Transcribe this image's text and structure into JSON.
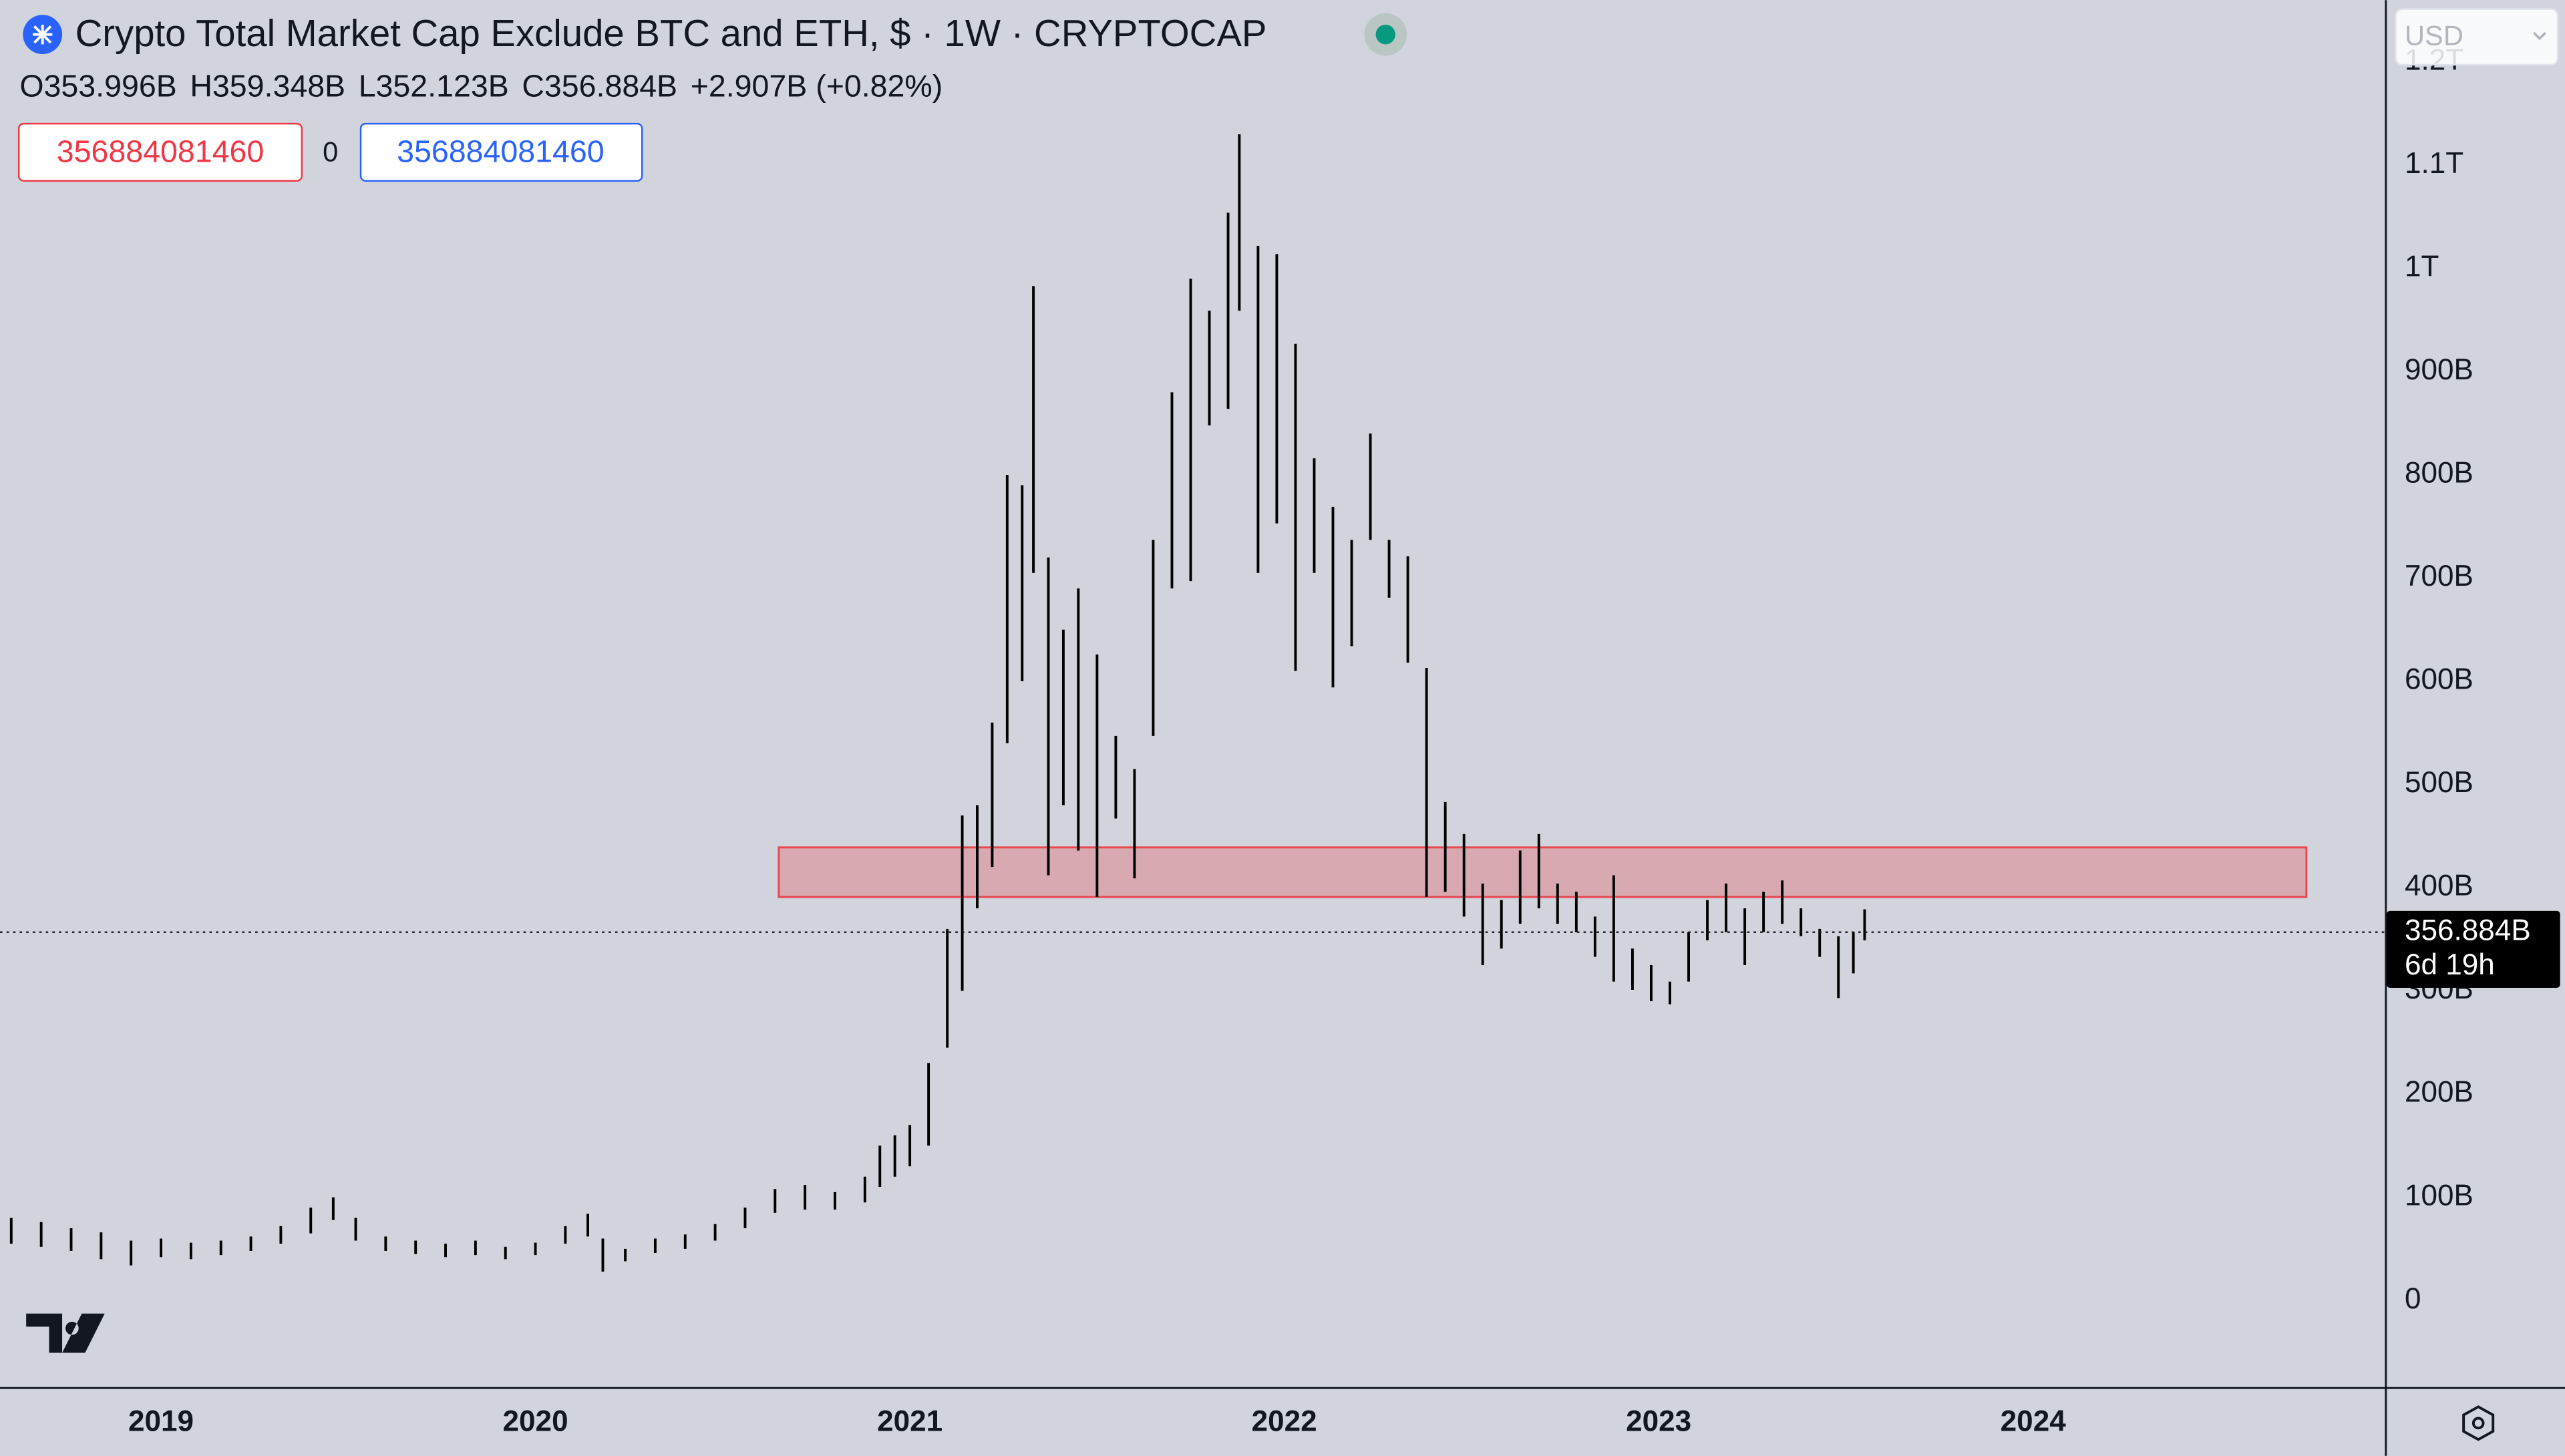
{
  "chart_data": {
    "type": "ohlc",
    "title": "Crypto Total Market Cap Exclude BTC and ETH, $ · 1W · CRYPTOCAP",
    "ohlc": [
      "O353.996B",
      "H359.348B",
      "L352.123B",
      "C356.884B",
      "+2.907B (+0.82%)"
    ],
    "inputs": [
      "356884081460",
      "0",
      "356884081460"
    ],
    "currency": "USD",
    "countdown": "6d 19h",
    "color": "#000000",
    "last_price": {
      "value": 356.884,
      "label": "356.884B"
    },
    "zone": {
      "x": [
        2020.65,
        2024.73
      ],
      "y": [
        391,
        439
      ],
      "color": "#e8474f"
    },
    "x": [
      2018.6,
      2018.68,
      2018.76,
      2018.84,
      2018.92,
      2019.0,
      2019.08,
      2019.16,
      2019.24,
      2019.32,
      2019.4,
      2019.46,
      2019.52,
      2019.6,
      2019.68,
      2019.76,
      2019.84,
      2019.92,
      2020.0,
      2020.08,
      2020.14,
      2020.18,
      2020.24,
      2020.32,
      2020.4,
      2020.48,
      2020.56,
      2020.64,
      2020.72,
      2020.8,
      2020.88,
      2020.92,
      2020.96,
      2021.0,
      2021.05,
      2021.1,
      2021.14,
      2021.18,
      2021.22,
      2021.26,
      2021.3,
      2021.33,
      2021.37,
      2021.41,
      2021.45,
      2021.5,
      2021.55,
      2021.6,
      2021.65,
      2021.7,
      2021.75,
      2021.8,
      2021.85,
      2021.88,
      2021.93,
      2021.98,
      2022.03,
      2022.08,
      2022.13,
      2022.18,
      2022.23,
      2022.28,
      2022.33,
      2022.38,
      2022.43,
      2022.48,
      2022.53,
      2022.58,
      2022.63,
      2022.68,
      2022.73,
      2022.78,
      2022.83,
      2022.88,
      2022.93,
      2022.98,
      2023.03,
      2023.08,
      2023.13,
      2023.18,
      2023.23,
      2023.28,
      2023.33,
      2023.38,
      2023.43,
      2023.48,
      2023.52,
      2023.55
    ],
    "high": [
      80,
      76,
      70,
      66,
      58,
      60,
      56,
      58,
      62,
      72,
      90,
      100,
      80,
      62,
      58,
      55,
      58,
      52,
      56,
      72,
      84,
      60,
      50,
      60,
      64,
      74,
      90,
      108,
      112,
      105,
      120,
      150,
      160,
      170,
      230,
      360,
      470,
      480,
      560,
      800,
      790,
      983,
      720,
      650,
      690,
      626,
      547,
      515,
      737,
      880,
      990,
      959,
      1054,
      1130,
      1022,
      1014,
      927,
      816,
      769,
      737,
      840,
      737,
      721,
      613,
      483,
      452,
      404,
      388,
      436,
      452,
      404,
      396,
      372,
      412,
      341,
      325,
      309,
      357,
      388,
      404,
      380,
      396,
      407,
      380,
      360,
      353,
      357,
      379
    ],
    "low": [
      55,
      52,
      48,
      40,
      34,
      42,
      40,
      44,
      48,
      55,
      65,
      78,
      58,
      48,
      45,
      42,
      44,
      40,
      44,
      55,
      62,
      28,
      38,
      46,
      50,
      58,
      70,
      85,
      88,
      88,
      95,
      110,
      120,
      130,
      150,
      245,
      300,
      380,
      420,
      540,
      600,
      705,
      412,
      480,
      436,
      391,
      467,
      409,
      547,
      690,
      697,
      848,
      864,
      959,
      705,
      753,
      610,
      705,
      594,
      634,
      737,
      681,
      618,
      391,
      396,
      372,
      325,
      341,
      365,
      380,
      365,
      357,
      333,
      309,
      301,
      290,
      287,
      309,
      349,
      357,
      325,
      357,
      365,
      353,
      333,
      293,
      317,
      349
    ],
    "xlim": [
      2018.57,
      2024.94
    ],
    "ylim": [
      -84,
      1260
    ],
    "xticks": [
      2019,
      2020,
      2021,
      2022,
      2023,
      2024
    ],
    "yticks": [
      0,
      {
        "value": 100,
        "label": "100B"
      },
      {
        "value": 200,
        "label": "200B"
      },
      {
        "value": 300,
        "label": "300B"
      },
      {
        "value": 400,
        "label": "400B"
      },
      {
        "value": 500,
        "label": "500B"
      },
      {
        "value": 600,
        "label": "600B"
      },
      {
        "value": 700,
        "label": "700B"
      },
      {
        "value": 800,
        "label": "800B"
      },
      {
        "value": 900,
        "label": "900B"
      },
      {
        "value": 1000,
        "label": "1T"
      },
      {
        "value": 1100,
        "label": "1.1T"
      },
      {
        "value": 1200,
        "label": "1.2T"
      }
    ]
  }
}
